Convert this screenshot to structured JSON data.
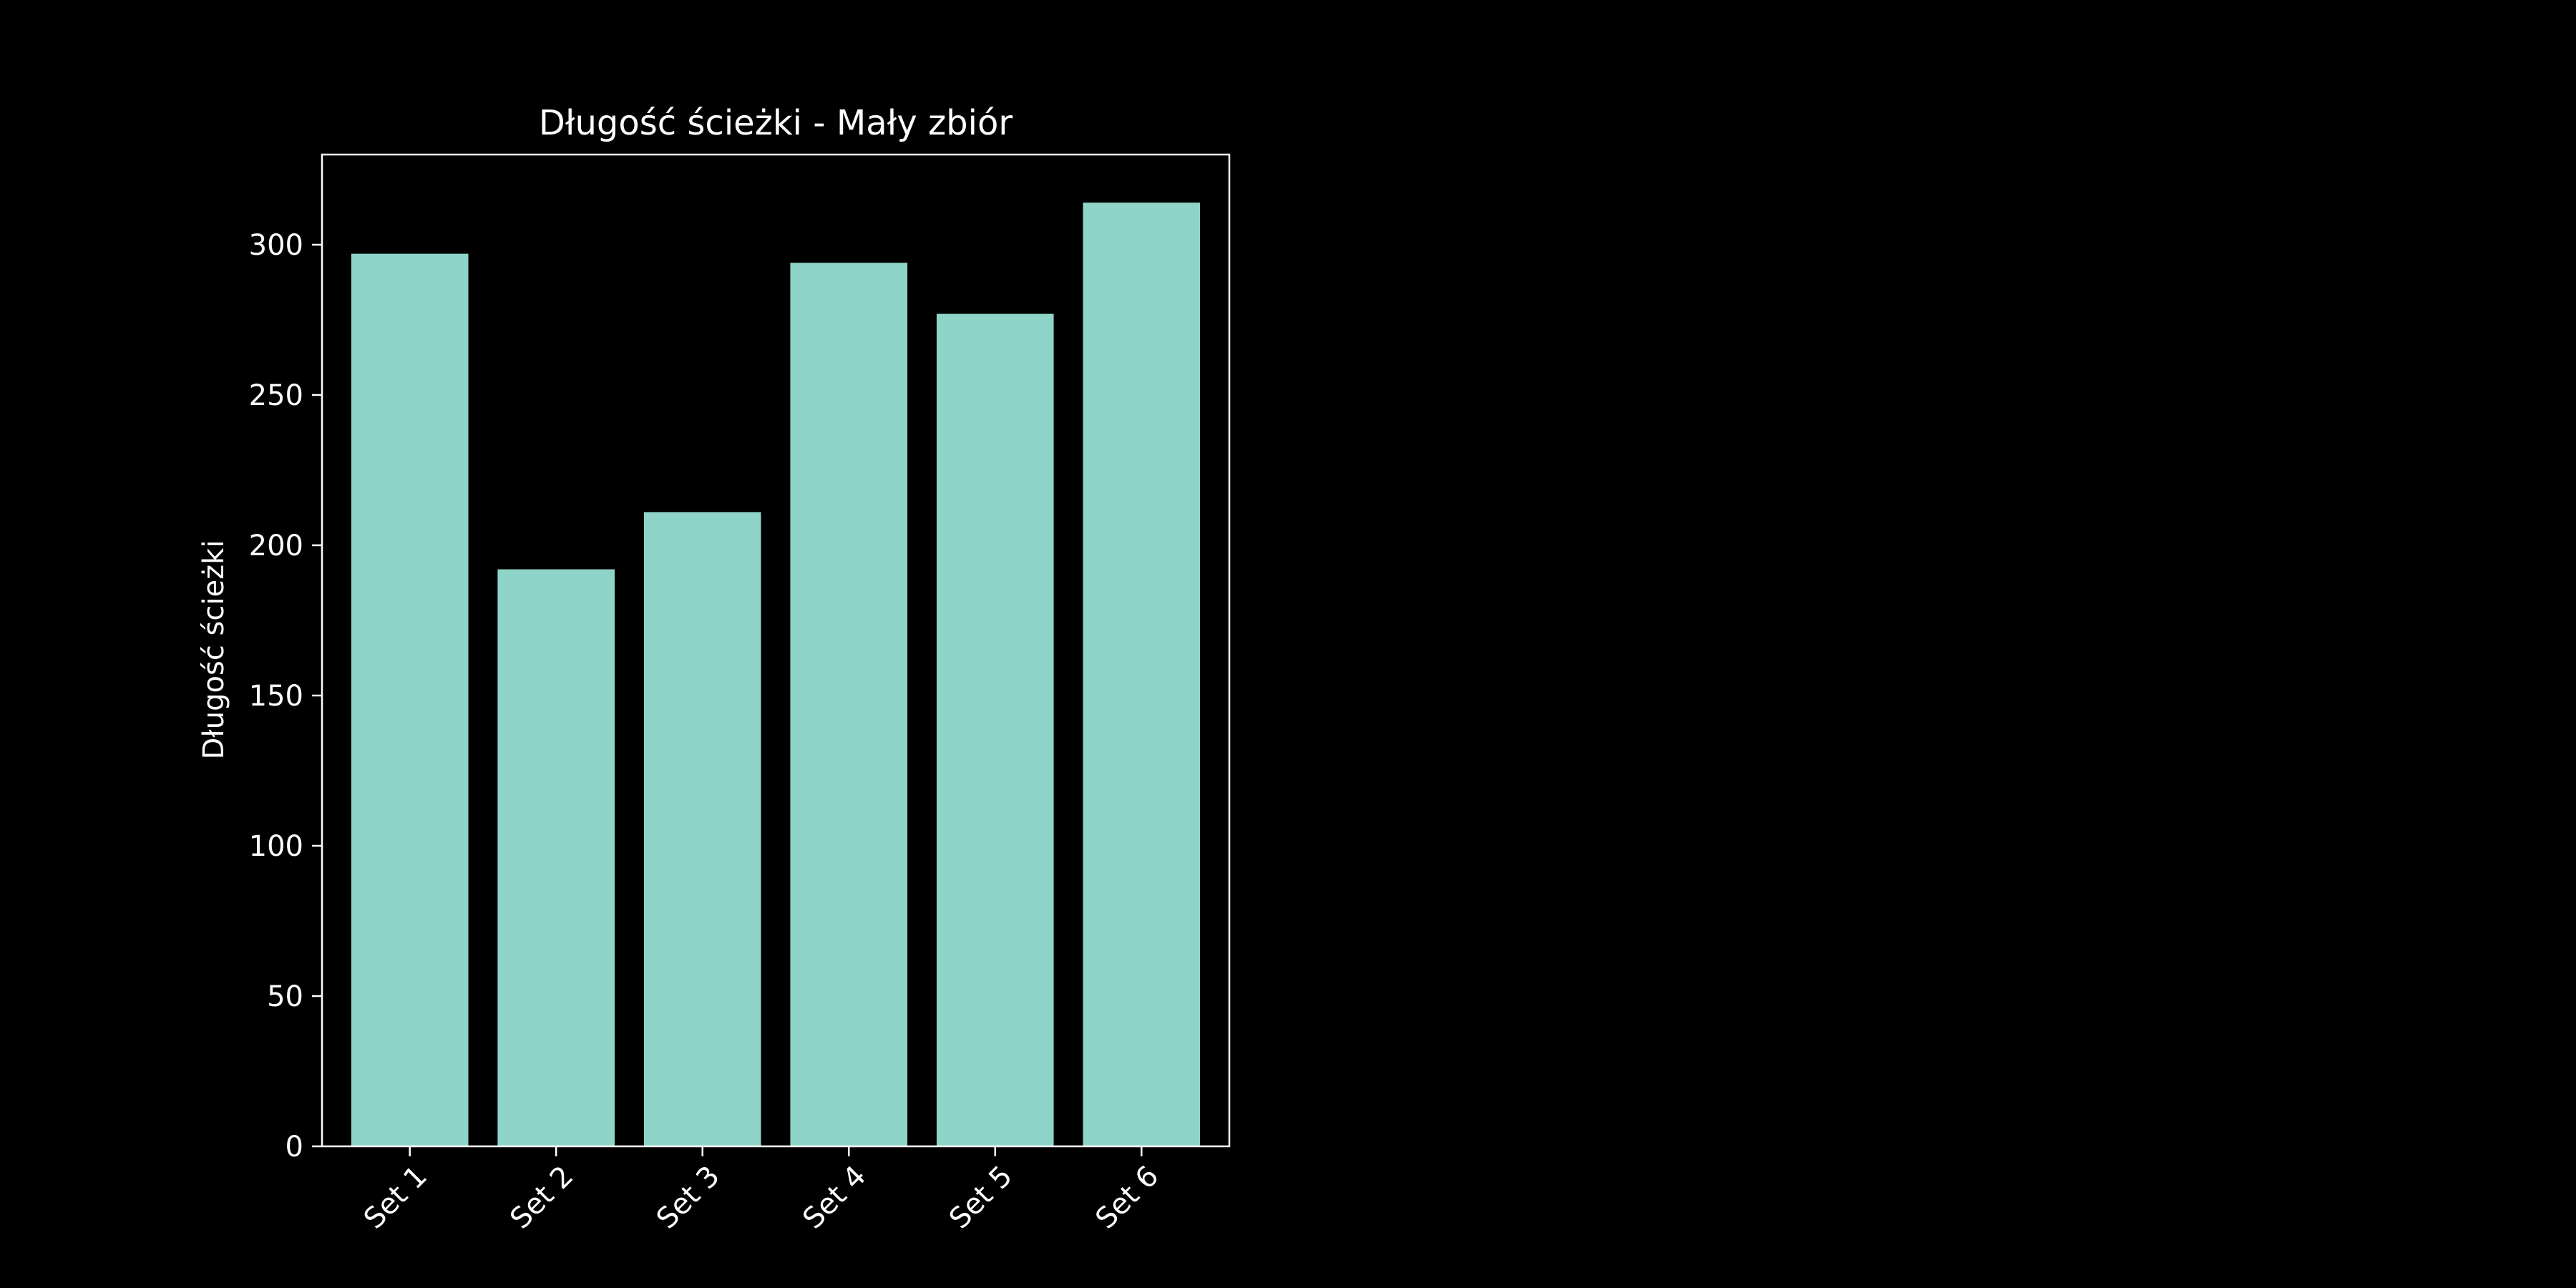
{
  "chart_data": {
    "type": "bar",
    "title": "Długość ścieżki - Mały zbiór",
    "xlabel": "",
    "ylabel": "Długość ścieżki",
    "categories": [
      "Set 1",
      "Set 2",
      "Set 3",
      "Set 4",
      "Set 5",
      "Set 6"
    ],
    "values": [
      297,
      192,
      211,
      294,
      277,
      314
    ],
    "ylim": [
      0,
      330
    ],
    "yticks": [
      0,
      50,
      100,
      150,
      200,
      250,
      300
    ],
    "grid": false,
    "legend": "none",
    "colors": {
      "background": "#000000",
      "bar": "#8fd4c8",
      "axes": "#ffffff",
      "text": "#ffffff"
    }
  }
}
